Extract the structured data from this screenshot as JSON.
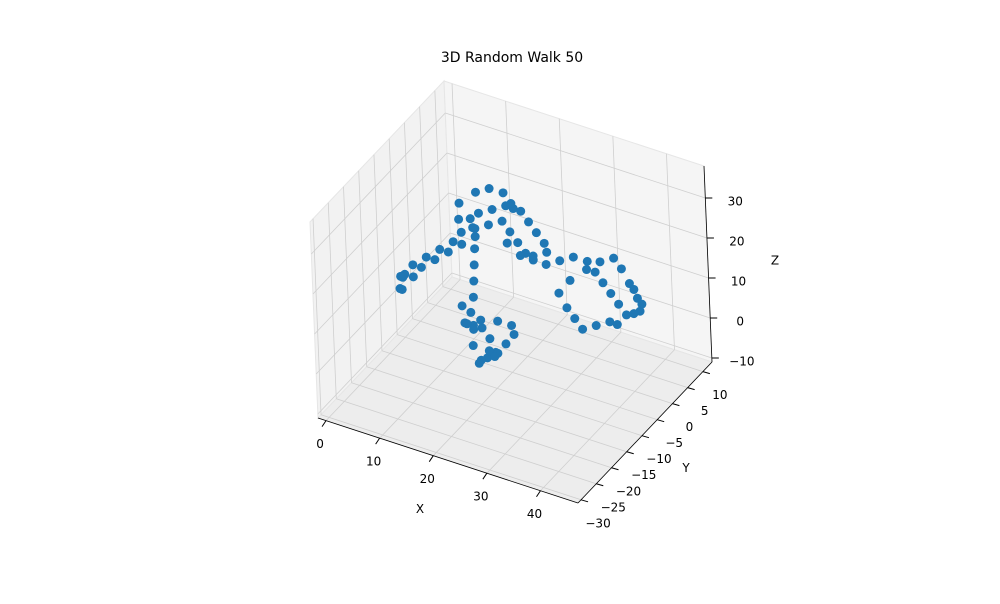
{
  "chart_data": {
    "type": "scatter3d",
    "title": "3D Random Walk 50",
    "xlabel": "X",
    "ylabel": "Y",
    "zlabel": "Z",
    "color": "#1f77b4",
    "xlim": [
      -1.5,
      47
    ],
    "ylim": [
      -31,
      13
    ],
    "zlim": [
      -11,
      38
    ],
    "xticks": [
      0,
      10,
      20,
      30,
      40
    ],
    "yticks": [
      {
        "value": -30,
        "label": "−30"
      },
      {
        "value": -25,
        "label": "−25"
      },
      {
        "value": -20,
        "label": "−20"
      },
      {
        "value": -15,
        "label": "−15"
      },
      {
        "value": -10,
        "label": "−10"
      },
      {
        "value": -5,
        "label": "−5"
      },
      0,
      5,
      10
    ],
    "zticks": [
      {
        "value": -10,
        "label": "−10"
      },
      0,
      10,
      20,
      30
    ],
    "x": [
      18,
      19,
      20,
      21,
      20,
      19,
      17,
      16,
      15,
      16,
      18,
      20,
      22,
      23,
      22,
      21,
      19,
      17,
      16,
      15,
      14,
      15,
      14,
      13,
      12,
      11,
      10,
      9,
      10,
      12,
      14,
      16,
      18,
      20,
      22,
      24,
      25,
      23,
      21,
      19,
      17,
      15,
      13,
      11,
      9,
      8,
      7,
      9,
      11,
      13,
      15,
      8,
      6,
      4,
      2,
      1,
      0,
      -1,
      0,
      1,
      2,
      3,
      5,
      7,
      9,
      17,
      20,
      23,
      26,
      28,
      30,
      32,
      34,
      36,
      38,
      40,
      42,
      44,
      43,
      41,
      39,
      37,
      35,
      33,
      31,
      30,
      32,
      34,
      36,
      38,
      40,
      42,
      44,
      45,
      43
    ],
    "y": [
      -12,
      -11,
      -10,
      -11,
      -12,
      -10,
      -9,
      -10,
      -11,
      -12,
      -11,
      -9,
      -8,
      -9,
      -10,
      -12,
      -13,
      -12,
      -10,
      -9,
      -10,
      -8,
      -6,
      -4,
      -2,
      0,
      1,
      2,
      3,
      4,
      5,
      4,
      3,
      2,
      1,
      0,
      -1,
      -2,
      -1,
      0,
      1,
      2,
      1,
      0,
      -1,
      0,
      2,
      4,
      5,
      6,
      5,
      -2,
      -3,
      -4,
      -5,
      -6,
      -5,
      -4,
      -6,
      -7,
      -5,
      -4,
      -3,
      -2,
      -1,
      0,
      -1,
      -2,
      -3,
      -2,
      -1,
      0,
      -1,
      -2,
      -3,
      -4,
      -5,
      -4,
      -3,
      -2,
      -1,
      0,
      -1,
      -2,
      -4,
      -6,
      -7,
      -8,
      -9,
      -8,
      -7,
      -8,
      -6,
      -5,
      -4
    ],
    "z": [
      -4,
      -3,
      -2,
      -1,
      0,
      1,
      2,
      3,
      4,
      5,
      6,
      5,
      4,
      3,
      1,
      -1,
      -2,
      0,
      2,
      5,
      7,
      8,
      10,
      12,
      14,
      15,
      16,
      17,
      18,
      19,
      20,
      21,
      22,
      21,
      20,
      19,
      18,
      17,
      16,
      17,
      18,
      19,
      18,
      17,
      16,
      18,
      20,
      22,
      23,
      22,
      21,
      14,
      12,
      10,
      8,
      6,
      4,
      3,
      2,
      3,
      5,
      7,
      9,
      11,
      13,
      16,
      15,
      16,
      17,
      18,
      19,
      18,
      17,
      16,
      15,
      14,
      13,
      14,
      16,
      18,
      20,
      21,
      20,
      18,
      16,
      14,
      12,
      11,
      10,
      11,
      12,
      13,
      15,
      17,
      19
    ]
  }
}
